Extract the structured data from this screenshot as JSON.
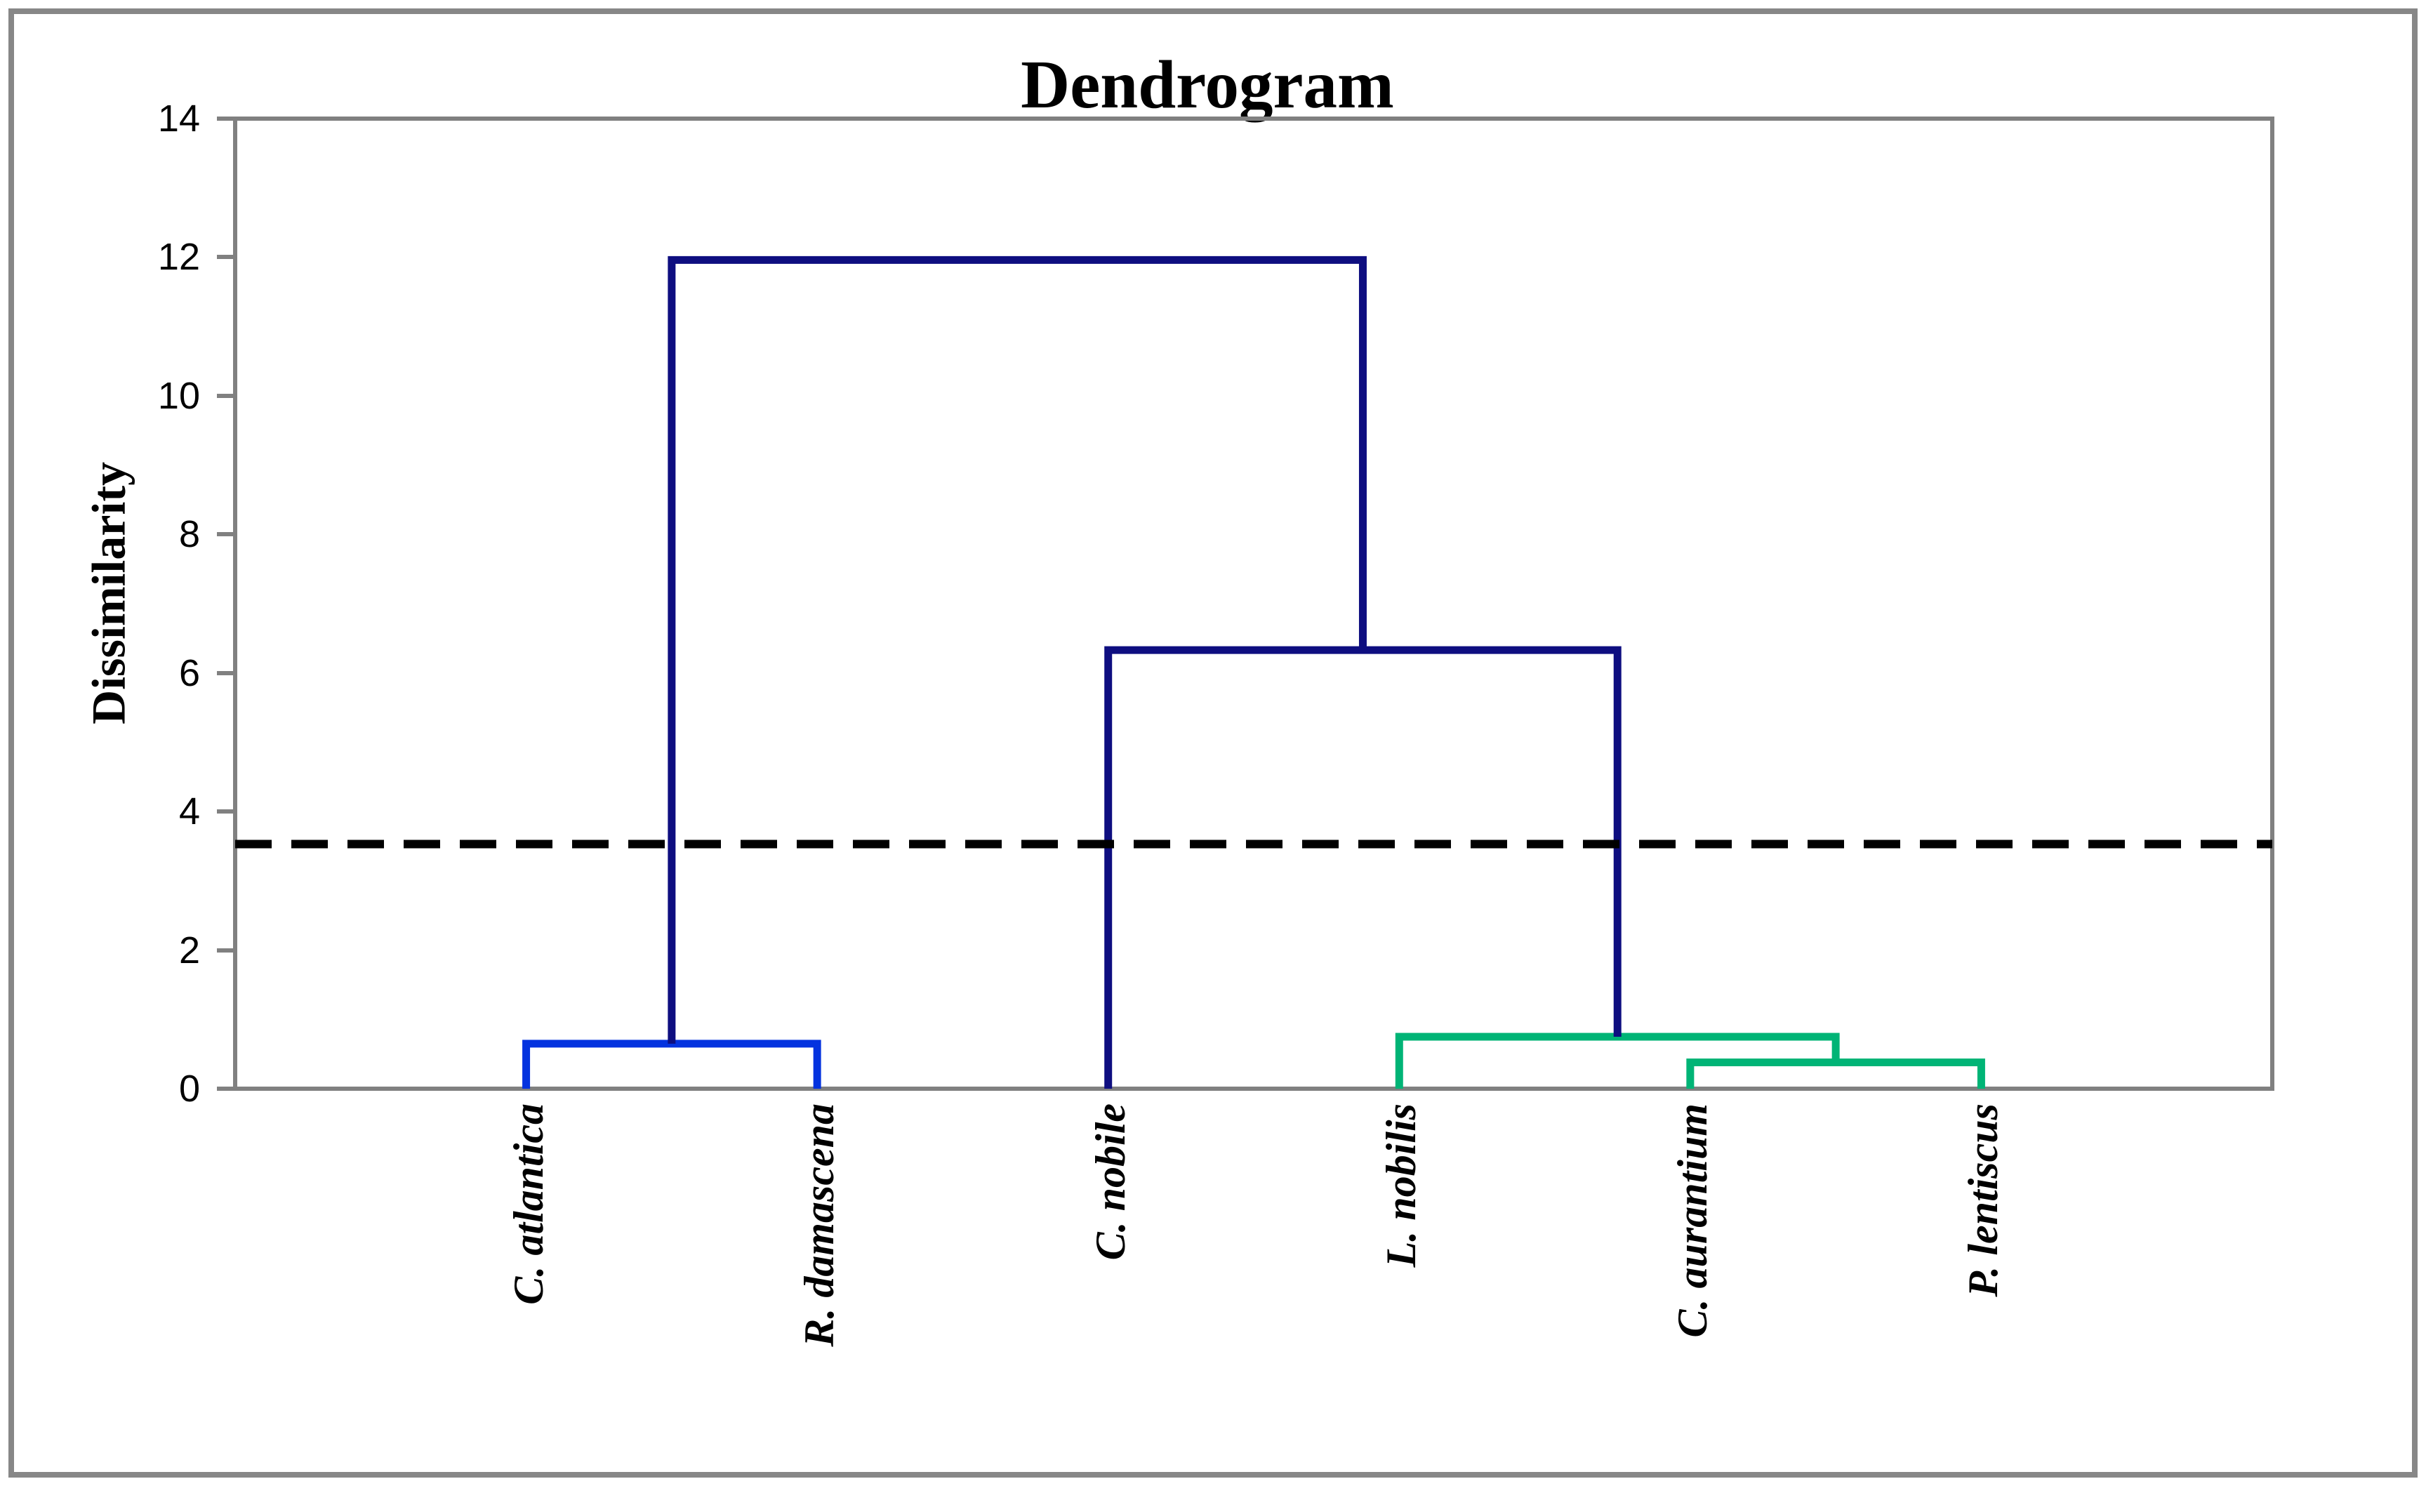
{
  "title": "Dendrogram",
  "y_axis": {
    "label": "Dissimilarity",
    "min": 0,
    "max": 14,
    "tick_step": 2,
    "ticks": [
      0,
      2,
      4,
      6,
      8,
      10,
      12,
      14
    ]
  },
  "colors": {
    "axis_gray": "#808080",
    "frame_gray": "#878787",
    "blue": "#0433df",
    "green": "#00b476",
    "navy": "#0e0e80",
    "cutoff_black": "#000000"
  },
  "chart_data": {
    "type": "dendrogram",
    "orientation": "vertical",
    "title": "Dendrogram",
    "ylabel": "Dissimilarity",
    "ylim": [
      0,
      14
    ],
    "grid": false,
    "leaves": [
      "C. atlantica",
      "R. damascena",
      "C. nobile",
      "L. nobilis",
      "C. aurantium",
      "P. lentiscus"
    ],
    "merges": [
      {
        "id": "A",
        "children": [
          "leaf:0",
          "leaf:1"
        ],
        "height": 0.65,
        "color_key": "blue"
      },
      {
        "id": "B",
        "children": [
          "leaf:4",
          "leaf:5"
        ],
        "height": 0.38,
        "color_key": "green"
      },
      {
        "id": "C",
        "children": [
          "leaf:3",
          "B"
        ],
        "height": 0.75,
        "color_key": "green"
      },
      {
        "id": "D",
        "children": [
          "leaf:2",
          "C"
        ],
        "height": 6.33,
        "color_key": "navy"
      },
      {
        "id": "E",
        "children": [
          "A",
          "D"
        ],
        "height": 11.96,
        "color_key": "navy"
      }
    ],
    "cutoff_line": {
      "value": 3.53,
      "style": "dashed",
      "color_key": "cutoff_black"
    }
  }
}
